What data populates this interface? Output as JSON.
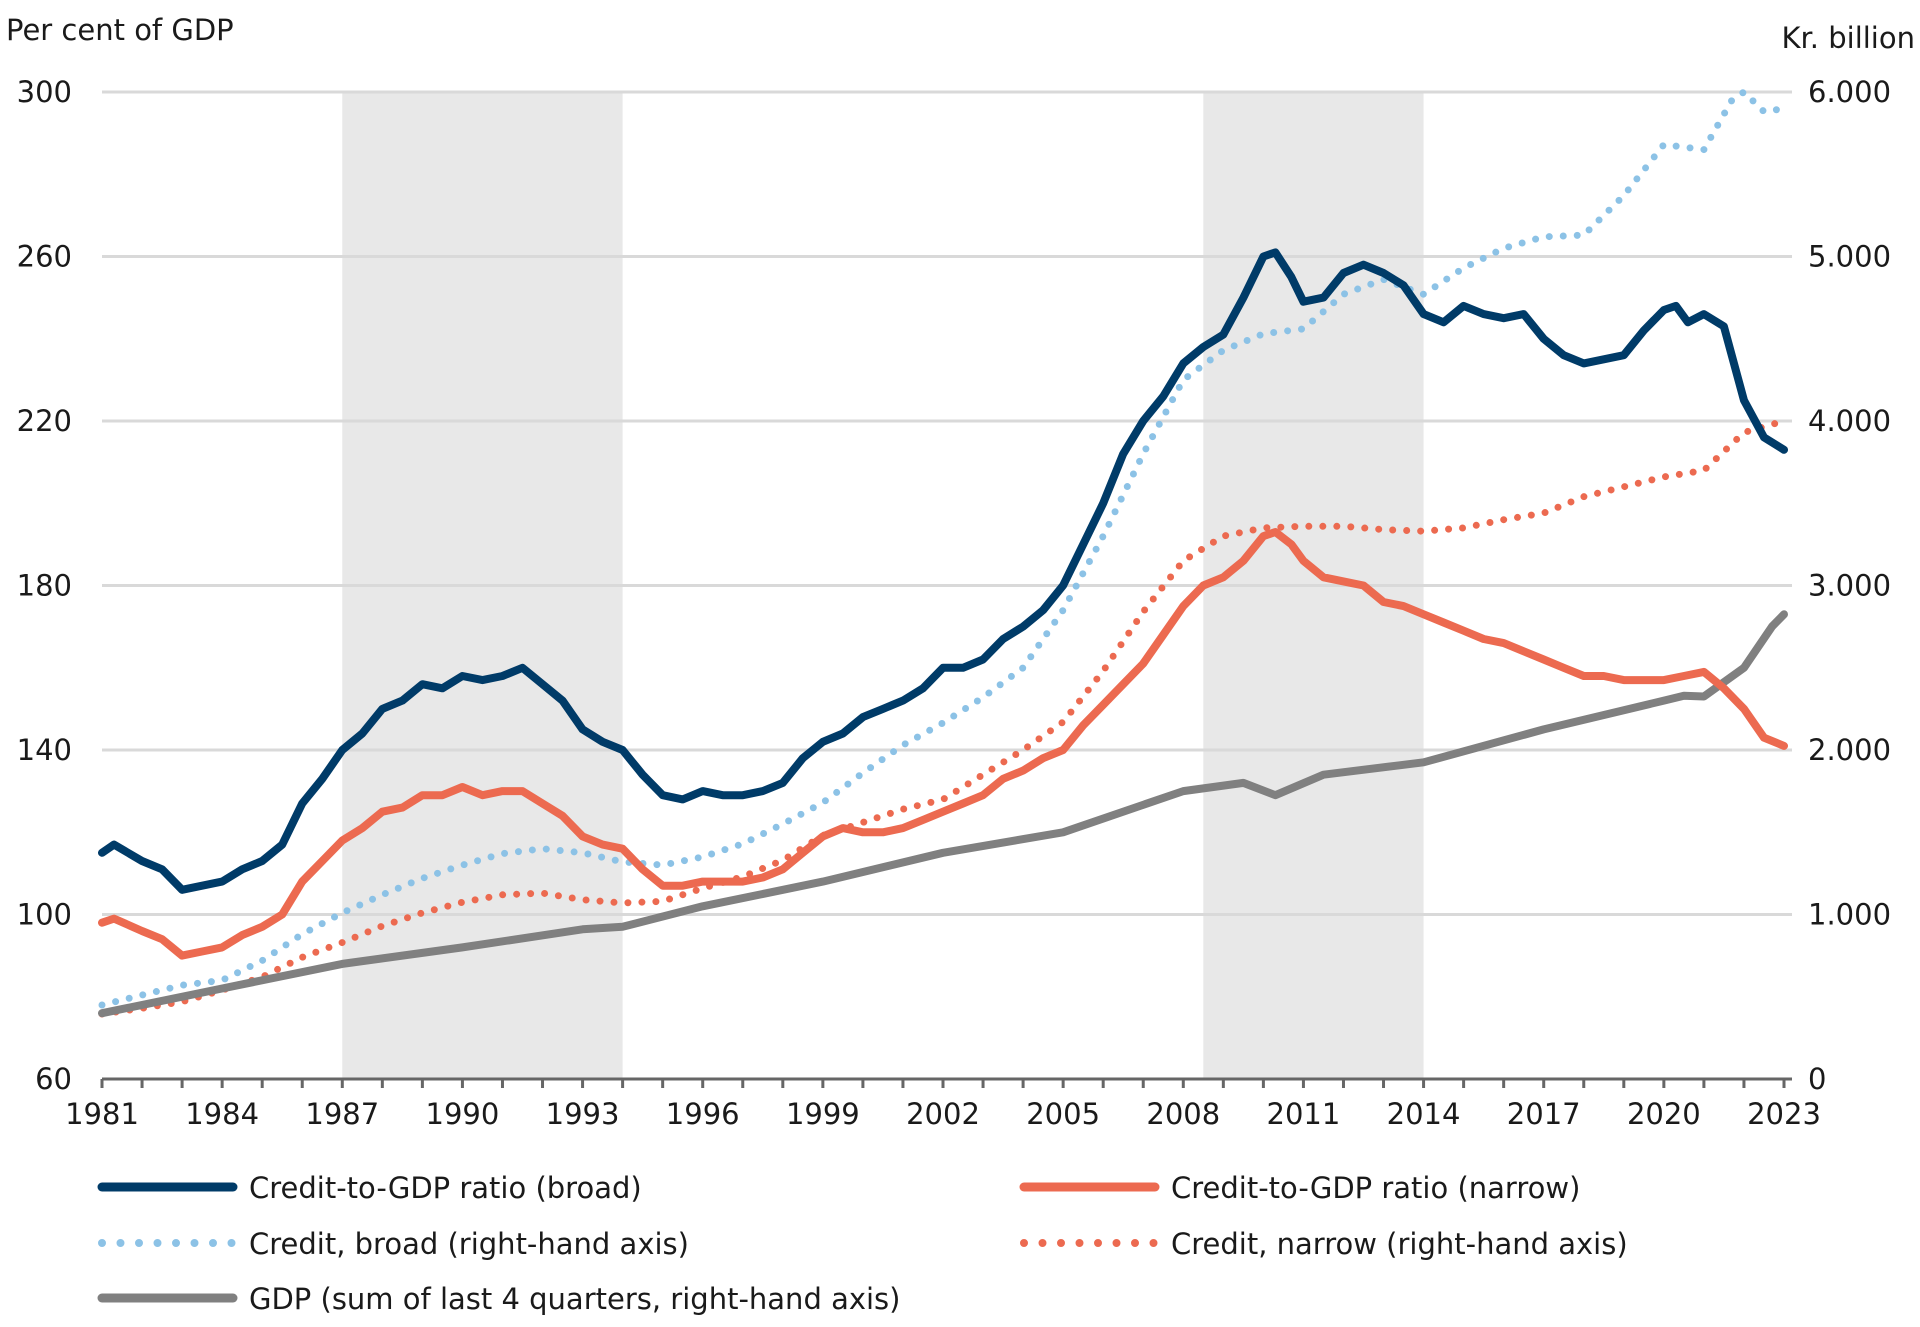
{
  "chart_data": {
    "type": "line",
    "left_axis_label": "Per cent of GDP",
    "right_axis_label": "Kr. billion",
    "xlim": [
      1981,
      2023
    ],
    "ylim_left": [
      60,
      300
    ],
    "ylim_right": [
      0,
      6000
    ],
    "left_ticks": [
      "300",
      "260",
      "220",
      "180",
      "140",
      "100",
      "60"
    ],
    "left_tick_values": [
      300,
      260,
      220,
      180,
      140,
      100,
      60
    ],
    "right_ticks": [
      "6.000",
      "5.000",
      "4.000",
      "3.000",
      "2.000",
      "1.000",
      "0"
    ],
    "right_tick_values": [
      6000,
      5000,
      4000,
      3000,
      2000,
      1000,
      0
    ],
    "x_ticks": [
      "1981",
      "1984",
      "1987",
      "1990",
      "1993",
      "1996",
      "1999",
      "2002",
      "2005",
      "2008",
      "2011",
      "2014",
      "2017",
      "2020",
      "2023"
    ],
    "x_tick_values": [
      1981,
      1984,
      1987,
      1990,
      1993,
      1996,
      1999,
      2002,
      2005,
      2008,
      2011,
      2014,
      2017,
      2020,
      2023
    ],
    "grid": true,
    "legend_placement": "bottom",
    "shaded_periods": [
      [
        1987,
        1994
      ],
      [
        2008.5,
        2014
      ]
    ],
    "series": [
      {
        "name": "Credit-to-GDP ratio (broad)",
        "axis": "left",
        "style": "solid",
        "color": "#003b68",
        "x": [
          1981,
          1981.3,
          1982,
          1982.5,
          1983,
          1983.5,
          1984,
          1984.5,
          1985,
          1985.5,
          1986,
          1986.5,
          1987,
          1987.5,
          1988,
          1988.5,
          1989,
          1989.5,
          1990,
          1990.5,
          1991,
          1991.5,
          1992,
          1992.5,
          1993,
          1993.5,
          1994,
          1994.5,
          1995,
          1995.5,
          1996,
          1996.5,
          1997,
          1997.5,
          1998,
          1998.5,
          1999,
          1999.5,
          2000,
          2000.5,
          2001,
          2001.5,
          2002,
          2002.5,
          2003,
          2003.5,
          2004,
          2004.5,
          2005,
          2005.5,
          2006,
          2006.5,
          2007,
          2007.5,
          2008,
          2008.5,
          2009,
          2009.5,
          2010,
          2010.3,
          2010.7,
          2011,
          2011.5,
          2012,
          2012.5,
          2013,
          2013.5,
          2014,
          2014.5,
          2015,
          2015.5,
          2016,
          2016.5,
          2017,
          2017.5,
          2018,
          2018.5,
          2019,
          2019.5,
          2020,
          2020.3,
          2020.6,
          2021,
          2021.5,
          2022,
          2022.5,
          2023
        ],
        "values": [
          115,
          117,
          113,
          111,
          106,
          107,
          108,
          111,
          113,
          117,
          127,
          133,
          140,
          144,
          150,
          152,
          156,
          155,
          158,
          157,
          158,
          160,
          156,
          152,
          145,
          142,
          140,
          134,
          129,
          128,
          130,
          129,
          129,
          130,
          132,
          138,
          142,
          144,
          148,
          150,
          152,
          155,
          160,
          160,
          162,
          167,
          170,
          174,
          180,
          190,
          200,
          212,
          220,
          226,
          234,
          238,
          241,
          250,
          260,
          261,
          255,
          249,
          250,
          256,
          258,
          256,
          253,
          246,
          244,
          248,
          246,
          245,
          246,
          240,
          236,
          234,
          235,
          236,
          242,
          247,
          248,
          244,
          246,
          243,
          225,
          216,
          213
        ]
      },
      {
        "name": "Credit-to-GDP ratio (narrow)",
        "axis": "left",
        "style": "solid",
        "color": "#ec6a50",
        "x": [
          1981,
          1981.3,
          1982,
          1982.5,
          1983,
          1983.5,
          1984,
          1984.5,
          1985,
          1985.5,
          1986,
          1986.5,
          1987,
          1987.5,
          1988,
          1988.5,
          1989,
          1989.5,
          1990,
          1990.5,
          1991,
          1991.5,
          1992,
          1992.5,
          1993,
          1993.5,
          1994,
          1994.5,
          1995,
          1995.5,
          1996,
          1996.5,
          1997,
          1997.5,
          1998,
          1998.5,
          1999,
          1999.5,
          2000,
          2000.5,
          2001,
          2001.5,
          2002,
          2002.5,
          2003,
          2003.5,
          2004,
          2004.5,
          2005,
          2005.5,
          2006,
          2006.5,
          2007,
          2007.5,
          2008,
          2008.5,
          2009,
          2009.5,
          2010,
          2010.3,
          2010.7,
          2011,
          2011.5,
          2012,
          2012.5,
          2013,
          2013.5,
          2014,
          2014.5,
          2015,
          2015.5,
          2016,
          2016.5,
          2017,
          2017.5,
          2018,
          2018.5,
          2019,
          2019.5,
          2020,
          2020.5,
          2021,
          2021.5,
          2022,
          2022.5,
          2023
        ],
        "values": [
          98,
          99,
          96,
          94,
          90,
          91,
          92,
          95,
          97,
          100,
          108,
          113,
          118,
          121,
          125,
          126,
          129,
          129,
          131,
          129,
          130,
          130,
          127,
          124,
          119,
          117,
          116,
          111,
          107,
          107,
          108,
          108,
          108,
          109,
          111,
          115,
          119,
          121,
          120,
          120,
          121,
          123,
          125,
          127,
          129,
          133,
          135,
          138,
          140,
          146,
          151,
          156,
          161,
          168,
          175,
          180,
          182,
          186,
          192,
          193,
          190,
          186,
          182,
          181,
          180,
          176,
          175,
          173,
          171,
          169,
          167,
          166,
          164,
          162,
          160,
          158,
          158,
          157,
          157,
          157,
          158,
          159,
          155,
          150,
          143,
          141
        ]
      },
      {
        "name": "Credit, broad (right-hand axis)",
        "axis": "right",
        "style": "dotted",
        "color": "#8cc2e6",
        "x": [
          1981,
          1982,
          1983,
          1984,
          1985,
          1986,
          1987,
          1988,
          1989,
          1990,
          1991,
          1992,
          1993,
          1994,
          1995,
          1996,
          1997,
          1998,
          1999,
          2000,
          2001,
          2002,
          2003,
          2004,
          2005,
          2006,
          2007,
          2008,
          2009,
          2010,
          2011,
          2012,
          2013,
          2014,
          2015,
          2016,
          2017,
          2018,
          2019,
          2020,
          2021,
          2021.7,
          2022,
          2022.5,
          2023
        ],
        "values": [
          450,
          510,
          570,
          600,
          720,
          880,
          1010,
          1120,
          1220,
          1300,
          1370,
          1400,
          1375,
          1320,
          1300,
          1350,
          1430,
          1550,
          1680,
          1860,
          2030,
          2165,
          2320,
          2500,
          2850,
          3300,
          3800,
          4250,
          4430,
          4530,
          4560,
          4770,
          4860,
          4770,
          4930,
          5050,
          5120,
          5130,
          5370,
          5680,
          5650,
          5950,
          6000,
          5880,
          5900
        ]
      },
      {
        "name": "Credit, narrow (right-hand axis)",
        "axis": "right",
        "style": "dotted",
        "color": "#ec6a50",
        "x": [
          1981,
          1982,
          1983,
          1984,
          1985,
          1986,
          1987,
          1988,
          1989,
          1990,
          1991,
          1992,
          1993,
          1994,
          1995,
          1996,
          1997,
          1998,
          1999,
          2000,
          2001,
          2002,
          2003,
          2004,
          2005,
          2006,
          2007,
          2008,
          2009,
          2010,
          2011,
          2012,
          2013,
          2014,
          2015,
          2016,
          2017,
          2018,
          2019,
          2020,
          2021,
          2022,
          2023
        ],
        "values": [
          395,
          430,
          470,
          540,
          620,
          740,
          830,
          930,
          1010,
          1075,
          1120,
          1130,
          1090,
          1070,
          1080,
          1160,
          1230,
          1330,
          1480,
          1560,
          1640,
          1700,
          1850,
          2000,
          2170,
          2480,
          2840,
          3150,
          3300,
          3350,
          3360,
          3360,
          3340,
          3330,
          3350,
          3400,
          3440,
          3540,
          3600,
          3660,
          3700,
          3930,
          4000
        ]
      },
      {
        "name": "GDP (sum of last 4 quarters, right-hand axis)",
        "axis": "right",
        "style": "solid",
        "color": "#808080",
        "x": [
          1981,
          1984,
          1987,
          1990,
          1993,
          1994,
          1996,
          1999,
          2002,
          2005,
          2008,
          2009.5,
          2010.3,
          2011.5,
          2014,
          2017,
          2020,
          2020.5,
          2021,
          2022,
          2022.7,
          2023
        ],
        "values": [
          400,
          550,
          700,
          800,
          910,
          925,
          1050,
          1200,
          1375,
          1500,
          1750,
          1800,
          1725,
          1850,
          1925,
          2125,
          2300,
          2330,
          2325,
          2500,
          2750,
          2825
        ]
      }
    ]
  }
}
